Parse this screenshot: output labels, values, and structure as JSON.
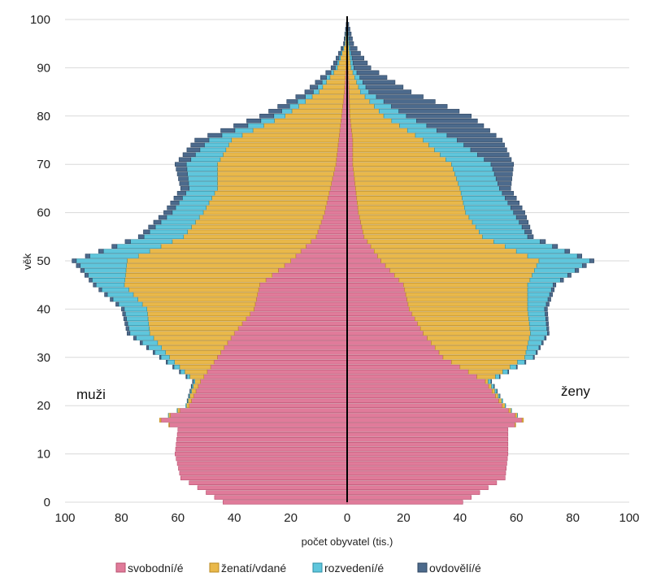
{
  "chart_data": {
    "type": "bar",
    "orientation": "horizontal-population-pyramid",
    "ylabel": "věk",
    "xlabel": "počet obyvatel  (tis.)",
    "left_label": "muži",
    "right_label": "ženy",
    "xlim": [
      -100,
      100
    ],
    "ylim": [
      0,
      100
    ],
    "x_ticks": [
      {
        "value": -100,
        "label": "100"
      },
      {
        "value": -80,
        "label": "80"
      },
      {
        "value": -60,
        "label": "60"
      },
      {
        "value": -40,
        "label": "40"
      },
      {
        "value": -20,
        "label": "20"
      },
      {
        "value": 0,
        "label": "0"
      },
      {
        "value": 20,
        "label": "20"
      },
      {
        "value": 40,
        "label": "40"
      },
      {
        "value": 60,
        "label": "60"
      },
      {
        "value": 80,
        "label": "80"
      },
      {
        "value": 100,
        "label": "100"
      }
    ],
    "y_ticks": [
      0,
      10,
      20,
      30,
      40,
      50,
      60,
      70,
      80,
      90,
      100
    ],
    "grid": "horizontal",
    "legend_position": "bottom",
    "series": [
      {
        "name": "svobodní/é",
        "color": "#E07B9A"
      },
      {
        "name": "ženatí/vdané",
        "color": "#E9B84A"
      },
      {
        "name": "rozvedení/é",
        "color": "#5FC6DC"
      },
      {
        "name": "ovdovělí/é",
        "color": "#4C6A8C"
      }
    ],
    "ages": [
      0,
      5,
      10,
      15,
      17,
      20,
      25,
      30,
      35,
      40,
      45,
      50,
      55,
      60,
      65,
      70,
      75,
      80,
      85,
      90,
      95,
      100
    ],
    "men": {
      "single": [
        44,
        59,
        61,
        60,
        66,
        56,
        52,
        46,
        40,
        33,
        31,
        20,
        11,
        8,
        6,
        4,
        3,
        2,
        1,
        0.5,
        0.2,
        0.05
      ],
      "married": [
        0,
        0,
        0,
        0,
        0.5,
        1,
        2,
        17,
        30,
        38,
        48,
        58,
        47,
        43,
        40,
        42,
        38,
        20,
        9,
        3,
        0.5,
        0
      ],
      "divorced": [
        0,
        0,
        0,
        0,
        0,
        0.2,
        0.5,
        3,
        7,
        8,
        10,
        18,
        14,
        11,
        10,
        11,
        8,
        4,
        2,
        0.7,
        0.2,
        0
      ],
      "widowed": [
        0,
        0,
        0,
        0,
        0,
        0,
        0.3,
        0.5,
        1,
        1,
        1,
        1.5,
        2,
        3,
        3,
        4,
        5,
        5,
        3,
        1.5,
        0.4,
        0.05
      ]
    },
    "women": {
      "single": [
        41,
        56,
        57,
        57,
        62,
        55,
        49,
        34,
        27,
        22,
        20,
        12,
        6,
        4,
        3,
        2,
        2,
        1,
        0.7,
        0.4,
        0.2,
        0.05
      ],
      "married": [
        0,
        0,
        0,
        0,
        0.5,
        1,
        1,
        29,
        38,
        42,
        44,
        56,
        42,
        38,
        37,
        35,
        25,
        12,
        4,
        1,
        0.3,
        0
      ],
      "divorced": [
        0,
        0,
        0,
        0,
        0,
        0.2,
        1,
        3,
        6,
        6,
        9,
        18,
        16,
        17,
        14,
        14,
        12,
        8,
        3,
        1,
        0.3,
        0
      ],
      "widowed": [
        0,
        0,
        0,
        0,
        0,
        0,
        0.2,
        0.4,
        0.6,
        1,
        1,
        1.5,
        2,
        4,
        4,
        8,
        16,
        23,
        15,
        6,
        1.5,
        0.1
      ]
    }
  }
}
